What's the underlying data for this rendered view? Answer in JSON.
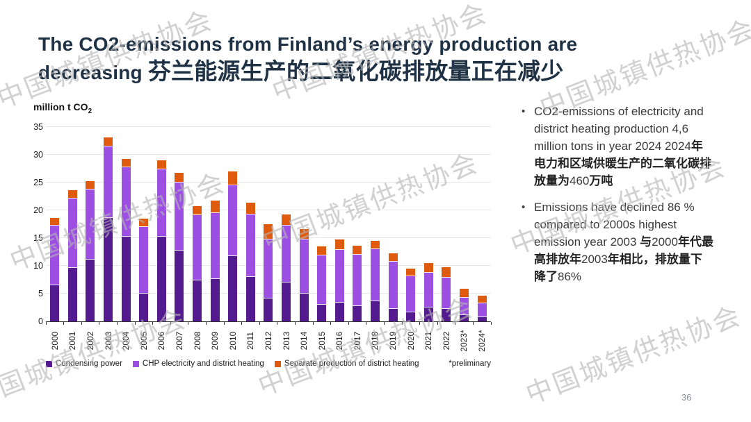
{
  "slide": {
    "title_line1": "The CO2-emissions from Finland’s energy production are",
    "title_line2_en": "decreasing ",
    "title_line2_zh": "芬兰能源生产的二氧化碳排放量正在减少",
    "page_number": "36",
    "watermark_text": "中国城镇供热协会"
  },
  "chart_data": {
    "type": "bar",
    "stacked": true,
    "unit_label": "million t CO",
    "unit_sub": "2",
    "categories": [
      "2000",
      "2001",
      "2002",
      "2003",
      "2004",
      "2005",
      "2006",
      "2007",
      "2008",
      "2009",
      "2010",
      "2011",
      "2012",
      "2013",
      "2014",
      "2015",
      "2016",
      "2017",
      "2018",
      "2019",
      "2020",
      "2021",
      "2022",
      "2023*",
      "2024*"
    ],
    "series": [
      {
        "name": "Condensing power",
        "color": "#541a8f",
        "values": [
          6.5,
          9.6,
          11.1,
          18.6,
          15.3,
          5.0,
          15.2,
          12.8,
          7.4,
          7.6,
          11.8,
          8.0,
          4.1,
          7.0,
          5.0,
          3.0,
          3.4,
          2.7,
          3.6,
          2.2,
          1.6,
          2.5,
          2.2,
          1.1,
          0.8
        ]
      },
      {
        "name": "CHP electricity and district heating",
        "color": "#9d4fe3",
        "values": [
          10.7,
          12.5,
          12.6,
          12.9,
          12.5,
          12.0,
          12.2,
          12.2,
          11.7,
          11.9,
          12.7,
          11.3,
          10.7,
          10.2,
          9.8,
          8.9,
          9.5,
          9.3,
          9.4,
          8.6,
          6.5,
          6.3,
          5.7,
          3.2,
          2.5
        ]
      },
      {
        "name": "Separate production of district heating",
        "color": "#e05a0d",
        "values": [
          1.4,
          1.5,
          1.6,
          1.6,
          1.4,
          1.5,
          1.6,
          1.8,
          1.7,
          2.2,
          2.5,
          2.1,
          2.7,
          2.1,
          1.8,
          1.6,
          1.9,
          1.6,
          1.5,
          1.4,
          1.4,
          1.7,
          1.8,
          1.6,
          1.3
        ]
      }
    ],
    "ylim": [
      0,
      35
    ],
    "yticks": [
      0,
      5,
      10,
      15,
      20,
      25,
      30,
      35
    ],
    "grid": true,
    "legend_position": "bottom",
    "footnote": "*preliminary"
  },
  "bullets": [
    {
      "segments": [
        {
          "t": "CO2-emissions of electricity and district heating production 4,6 million tons in year 2024 2024",
          "b": false
        },
        {
          "t": "年电力和区域供暖生产的二氧化碳排放量为",
          "b": true
        },
        {
          "t": "460",
          "b": false
        },
        {
          "t": "万吨",
          "b": true
        }
      ]
    },
    {
      "segments": [
        {
          "t": "Emissions have declined 86 % compared to 2000s highest emission year 2003 ",
          "b": false
        },
        {
          "t": "与",
          "b": true
        },
        {
          "t": "2000",
          "b": false
        },
        {
          "t": "年代最高排放年",
          "b": true
        },
        {
          "t": "2003",
          "b": false
        },
        {
          "t": "年相比，排放量下降了",
          "b": true
        },
        {
          "t": "86%",
          "b": false
        }
      ]
    }
  ]
}
